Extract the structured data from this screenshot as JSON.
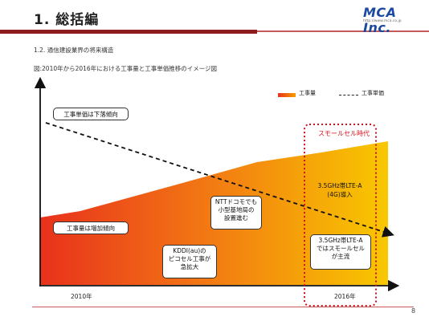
{
  "header": {
    "title": "1. 総括編",
    "logo": "MCA Inc.",
    "logo_sub": "http://www.mca.co.jp"
  },
  "section_label": "1.2. 通信建設業界の将来構造",
  "figure_caption": "図:2010年から2016年における工事量と工事単価推移のイメージ図",
  "legend": {
    "volume": "工事量",
    "price": "工事単価"
  },
  "era_label": "スモールセル時代",
  "callouts": {
    "price_trend": "工事単価は下落傾向",
    "volume_trend": "工事量は増加傾向",
    "ntt_line1": "NTTドコモでも",
    "ntt_line2": "小型基地局の",
    "ntt_line3": "設置進む",
    "kddi_line1": "KDDI(au)の",
    "kddi_line2": "ピコセル工事が",
    "kddi_line3": "急拡大",
    "lte_intro_line1": "3.5GHz帯LTE-A",
    "lte_intro_line2": "(4G)導入",
    "lte_main_line1": "3.5GHz帯LTE-A",
    "lte_main_line2": "ではスモールセル",
    "lte_main_line3": "が主流"
  },
  "axis": {
    "start_year": "2010年",
    "end_year": "2016年"
  },
  "page_number": "8",
  "colors": {
    "gradient_start": "#e8311c",
    "gradient_end": "#f6c400",
    "title_rule": "#8f1c1c",
    "era_border": "#d0101c",
    "logo": "#1b4aa0"
  }
}
